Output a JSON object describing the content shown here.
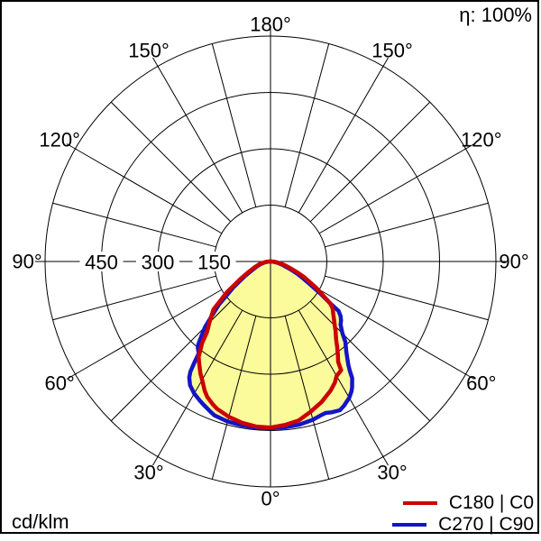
{
  "header": {
    "efficiency_label": "η: 100%"
  },
  "footer": {
    "unit_label": "cd/klm"
  },
  "legend": [
    {
      "label": "C180 | C0",
      "color": "#cc0000"
    },
    {
      "label": "C270 | C90",
      "color": "#1414c8"
    }
  ],
  "chart_data": {
    "type": "line",
    "subtype": "polar-photometric",
    "unit": "cd/klm",
    "efficiency": "100%",
    "fill_color": "#fbfb9b",
    "grid_color": "#000000",
    "radial_axis": {
      "min": 0,
      "max": 600,
      "labeled_ticks": [
        150,
        300,
        450
      ],
      "rings": [
        150,
        300,
        450,
        600
      ]
    },
    "angle_step_deg": 15,
    "tick_step_deg": 30,
    "angle_labels": [
      {
        "deg": 0,
        "text": "0°"
      },
      {
        "deg": 30,
        "text": "30°"
      },
      {
        "deg": 60,
        "text": "60°"
      },
      {
        "deg": 90,
        "text": "90°"
      },
      {
        "deg": 120,
        "text": "120°"
      },
      {
        "deg": 150,
        "text": "150°"
      },
      {
        "deg": 180,
        "text": "180°"
      }
    ],
    "series": [
      {
        "name": "C180 | C0",
        "color": "#cc0000",
        "points": [
          [
            -90,
            3
          ],
          [
            -85,
            12
          ],
          [
            -80,
            22
          ],
          [
            -75,
            33
          ],
          [
            -70,
            45
          ],
          [
            -65,
            62
          ],
          [
            -60,
            92
          ],
          [
            -55,
            140
          ],
          [
            -50,
            198
          ],
          [
            -45,
            230
          ],
          [
            -42,
            252
          ],
          [
            -40,
            283
          ],
          [
            -37,
            318
          ],
          [
            -35,
            331
          ],
          [
            -32,
            352
          ],
          [
            -30,
            364
          ],
          [
            -27,
            386
          ],
          [
            -25,
            398
          ],
          [
            -22,
            410
          ],
          [
            -20,
            417
          ],
          [
            -15,
            428
          ],
          [
            -10,
            436
          ],
          [
            -5,
            441
          ],
          [
            0,
            442
          ],
          [
            5,
            437
          ],
          [
            10,
            430
          ],
          [
            15,
            414
          ],
          [
            20,
            398
          ],
          [
            25,
            379
          ],
          [
            28,
            365
          ],
          [
            30,
            352
          ],
          [
            33,
            345
          ],
          [
            34,
            322
          ],
          [
            36,
            305
          ],
          [
            38,
            288
          ],
          [
            40,
            272
          ],
          [
            43,
            254
          ],
          [
            45,
            242
          ],
          [
            48,
            227
          ],
          [
            50,
            218
          ],
          [
            53,
            207
          ],
          [
            55,
            193
          ],
          [
            57,
            168
          ],
          [
            60,
            141
          ],
          [
            63,
            113
          ],
          [
            65,
            99
          ],
          [
            68,
            76
          ],
          [
            70,
            63
          ],
          [
            75,
            41
          ],
          [
            80,
            25
          ],
          [
            85,
            12
          ],
          [
            90,
            3
          ]
        ]
      },
      {
        "name": "C270 | C90",
        "color": "#1414c8",
        "points": [
          [
            -90,
            2
          ],
          [
            -85,
            8
          ],
          [
            -80,
            17
          ],
          [
            -75,
            27
          ],
          [
            -70,
            38
          ],
          [
            -65,
            53
          ],
          [
            -60,
            80
          ],
          [
            -55,
            122
          ],
          [
            -50,
            180
          ],
          [
            -47,
            215
          ],
          [
            -45,
            246
          ],
          [
            -43,
            268
          ],
          [
            -41,
            293
          ],
          [
            -40,
            301
          ],
          [
            -38,
            310
          ],
          [
            -37,
            336
          ],
          [
            -36,
            363
          ],
          [
            -35,
            377
          ],
          [
            -33,
            393
          ],
          [
            -30,
            406
          ],
          [
            -27,
            415
          ],
          [
            -25,
            421
          ],
          [
            -22,
            430
          ],
          [
            -20,
            436
          ],
          [
            -15,
            441
          ],
          [
            -10,
            443
          ],
          [
            -5,
            444
          ],
          [
            0,
            444
          ],
          [
            5,
            443
          ],
          [
            10,
            441
          ],
          [
            15,
            436
          ],
          [
            18,
            431
          ],
          [
            20,
            429
          ],
          [
            22,
            433
          ],
          [
            25,
            437
          ],
          [
            27,
            431
          ],
          [
            30,
            419
          ],
          [
            32,
            407
          ],
          [
            33,
            399
          ],
          [
            35,
            379
          ],
          [
            36,
            359
          ],
          [
            37,
            344
          ],
          [
            40,
            314
          ],
          [
            43,
            292
          ],
          [
            45,
            271
          ],
          [
            48,
            251
          ],
          [
            50,
            245
          ],
          [
            52,
            237
          ],
          [
            54,
            224
          ],
          [
            55,
            193
          ],
          [
            57,
            161
          ],
          [
            60,
            122
          ],
          [
            63,
            95
          ],
          [
            65,
            81
          ],
          [
            68,
            61
          ],
          [
            70,
            49
          ],
          [
            75,
            32
          ],
          [
            80,
            19
          ],
          [
            85,
            8
          ],
          [
            90,
            2
          ]
        ]
      }
    ]
  }
}
